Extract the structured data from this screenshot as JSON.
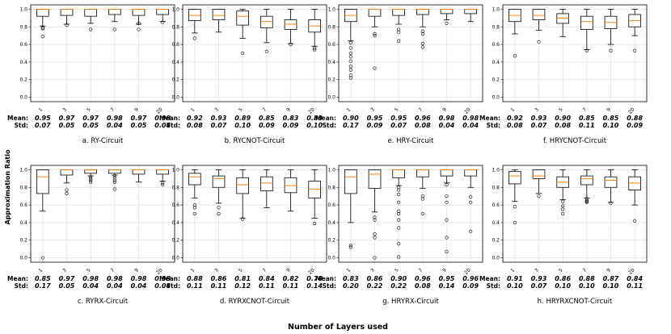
{
  "figure": {
    "y_axis_label": "Approximation Ratio",
    "x_axis_label": "Number of Layers used",
    "mean_label": "Mean:",
    "std_label": "Std:"
  },
  "colors": {
    "median": "#ff7f0e",
    "box": "#000000",
    "grid": "#dddddd"
  },
  "chart_data": [
    {
      "type": "box",
      "caption": "a. RY-Circuit",
      "row": 0,
      "col": 0,
      "categories": [
        "1",
        "3",
        "5",
        "7",
        "9",
        "20"
      ],
      "ylim": [
        0,
        1
      ],
      "yticks": [
        "0.0",
        "0.2",
        "0.4",
        "0.6",
        "0.8",
        "1.0"
      ],
      "means": [
        "0.95",
        "0.97",
        "0.97",
        "0.98",
        "0.97",
        "0.98"
      ],
      "stds": [
        "0.07",
        "0.05",
        "0.05",
        "0.04",
        "0.05",
        "0.04"
      ],
      "boxes": [
        {
          "q1": 0.92,
          "med": 1.0,
          "q3": 1.0,
          "lo": 0.81,
          "hi": 1.0,
          "out": [
            0.79,
            0.78,
            0.69
          ]
        },
        {
          "q1": 0.93,
          "med": 1.0,
          "q3": 1.0,
          "lo": 0.83,
          "hi": 1.0,
          "out": [
            0.82
          ]
        },
        {
          "q1": 0.92,
          "med": 1.0,
          "q3": 1.0,
          "lo": 0.84,
          "hi": 1.0,
          "out": [
            0.77
          ]
        },
        {
          "q1": 0.94,
          "med": 1.0,
          "q3": 1.0,
          "lo": 0.86,
          "hi": 1.0,
          "out": [
            0.77
          ]
        },
        {
          "q1": 0.93,
          "med": 1.0,
          "q3": 1.0,
          "lo": 0.83,
          "hi": 1.0,
          "out": [
            0.84,
            0.77
          ]
        },
        {
          "q1": 0.94,
          "med": 1.0,
          "q3": 1.0,
          "lo": 0.86,
          "hi": 1.0,
          "out": [
            0.85
          ]
        }
      ]
    },
    {
      "type": "box",
      "caption": "b. RYCNOT-Circuit",
      "row": 0,
      "col": 1,
      "categories": [
        "1",
        "3",
        "5",
        "7",
        "9",
        "20"
      ],
      "ylim": [
        0,
        1
      ],
      "yticks": [
        "0.0",
        "0.2",
        "0.4",
        "0.6",
        "0.8",
        "1.0"
      ],
      "means": [
        "0.92",
        "0.93",
        "0.89",
        "0.85",
        "0.83",
        "0.83"
      ],
      "stds": [
        "0.08",
        "0.07",
        "0.10",
        "0.09",
        "0.09",
        "0.10"
      ],
      "boxes": [
        {
          "q1": 0.87,
          "med": 0.93,
          "q3": 1.0,
          "lo": 0.73,
          "hi": 1.0,
          "out": [
            0.67
          ]
        },
        {
          "q1": 0.88,
          "med": 0.93,
          "q3": 1.0,
          "lo": 0.74,
          "hi": 1.0,
          "out": []
        },
        {
          "q1": 0.82,
          "med": 0.92,
          "q3": 0.98,
          "lo": 0.67,
          "hi": 1.0,
          "out": [
            0.5
          ]
        },
        {
          "q1": 0.79,
          "med": 0.86,
          "q3": 0.92,
          "lo": 0.62,
          "hi": 1.0,
          "out": [
            0.52
          ]
        },
        {
          "q1": 0.77,
          "med": 0.83,
          "q3": 0.88,
          "lo": 0.61,
          "hi": 1.0,
          "out": [
            0.6
          ]
        },
        {
          "q1": 0.74,
          "med": 0.81,
          "q3": 0.88,
          "lo": 0.58,
          "hi": 1.0,
          "out": [
            0.56,
            0.54
          ]
        }
      ]
    },
    {
      "type": "box",
      "caption": "e. HRY-Circuit",
      "row": 0,
      "col": 2,
      "categories": [
        "1",
        "3",
        "5",
        "7",
        "9",
        "20"
      ],
      "ylim": [
        0,
        1
      ],
      "yticks": [
        "0.0",
        "0.2",
        "0.4",
        "0.6",
        "0.8",
        "1.0"
      ],
      "means": [
        "0.90",
        "0.95",
        "0.95",
        "0.96",
        "0.98",
        "0.98"
      ],
      "stds": [
        "0.17",
        "0.09",
        "0.07",
        "0.08",
        "0.04",
        "0.04"
      ],
      "boxes": [
        {
          "q1": 0.86,
          "med": 0.93,
          "q3": 1.0,
          "lo": 0.64,
          "hi": 1.0,
          "out": [
            0.62,
            0.56,
            0.5,
            0.46,
            0.41,
            0.35,
            0.31,
            0.25,
            0.22
          ]
        },
        {
          "q1": 0.92,
          "med": 1.0,
          "q3": 1.0,
          "lo": 0.8,
          "hi": 1.0,
          "out": [
            0.72,
            0.7,
            0.33
          ]
        },
        {
          "q1": 0.93,
          "med": 1.0,
          "q3": 1.0,
          "lo": 0.83,
          "hi": 1.0,
          "out": [
            0.77,
            0.74,
            0.64
          ]
        },
        {
          "q1": 0.94,
          "med": 1.0,
          "q3": 1.0,
          "lo": 0.8,
          "hi": 1.0,
          "out": [
            0.75,
            0.72,
            0.61,
            0.57
          ]
        },
        {
          "q1": 0.95,
          "med": 1.0,
          "q3": 1.0,
          "lo": 0.88,
          "hi": 1.0,
          "out": [
            0.84
          ]
        },
        {
          "q1": 0.95,
          "med": 1.0,
          "q3": 1.0,
          "lo": 0.86,
          "hi": 1.0,
          "out": []
        }
      ]
    },
    {
      "type": "box",
      "caption": "f. HRYCNOT-Circuit",
      "row": 0,
      "col": 3,
      "categories": [
        "1",
        "3",
        "5",
        "7",
        "9",
        "20"
      ],
      "ylim": [
        0,
        1
      ],
      "yticks": [
        "0.0",
        "0.2",
        "0.4",
        "0.6",
        "0.8",
        "1.0"
      ],
      "means": [
        "0.92",
        "0.93",
        "0.90",
        "0.85",
        "0.85",
        "0.88"
      ],
      "stds": [
        "0.08",
        "0.07",
        "0.08",
        "0.11",
        "0.10",
        "0.09"
      ],
      "boxes": [
        {
          "q1": 0.86,
          "med": 0.93,
          "q3": 1.0,
          "lo": 0.72,
          "hi": 1.0,
          "out": [
            0.47
          ]
        },
        {
          "q1": 0.88,
          "med": 0.93,
          "q3": 1.0,
          "lo": 0.76,
          "hi": 1.0,
          "out": [
            0.63
          ]
        },
        {
          "q1": 0.84,
          "med": 0.9,
          "q3": 0.95,
          "lo": 0.69,
          "hi": 1.0,
          "out": []
        },
        {
          "q1": 0.77,
          "med": 0.86,
          "q3": 0.92,
          "lo": 0.54,
          "hi": 1.0,
          "out": [
            0.53
          ]
        },
        {
          "q1": 0.78,
          "med": 0.85,
          "q3": 0.92,
          "lo": 0.6,
          "hi": 1.0,
          "out": [
            0.53
          ]
        },
        {
          "q1": 0.8,
          "med": 0.87,
          "q3": 0.94,
          "lo": 0.7,
          "hi": 1.0,
          "out": [
            0.53
          ]
        }
      ]
    },
    {
      "type": "box",
      "caption": "c. RYRX-Circuit",
      "row": 1,
      "col": 0,
      "categories": [
        "1",
        "3",
        "5",
        "7",
        "9",
        "20"
      ],
      "ylim": [
        0,
        1
      ],
      "yticks": [
        "0.0",
        "0.2",
        "0.4",
        "0.6",
        "0.8",
        "1.0"
      ],
      "means": [
        "0.85",
        "0.97",
        "0.98",
        "0.98",
        "0.98",
        "0.98"
      ],
      "stds": [
        "0.17",
        "0.05",
        "0.04",
        "0.04",
        "0.04",
        "0.04"
      ],
      "boxes": [
        {
          "q1": 0.73,
          "med": 0.92,
          "q3": 1.0,
          "lo": 0.53,
          "hi": 1.0,
          "out": [
            0.0
          ]
        },
        {
          "q1": 0.94,
          "med": 1.0,
          "q3": 1.0,
          "lo": 0.85,
          "hi": 1.0,
          "out": [
            0.77,
            0.73
          ]
        },
        {
          "q1": 0.96,
          "med": 1.0,
          "q3": 1.0,
          "lo": 0.93,
          "hi": 1.0,
          "out": [
            0.92,
            0.9,
            0.88,
            0.86
          ]
        },
        {
          "q1": 0.96,
          "med": 1.0,
          "q3": 1.0,
          "lo": 0.94,
          "hi": 1.0,
          "out": [
            0.93,
            0.91,
            0.88,
            0.86,
            0.78
          ]
        },
        {
          "q1": 0.95,
          "med": 1.0,
          "q3": 1.0,
          "lo": 0.86,
          "hi": 1.0,
          "out": []
        },
        {
          "q1": 0.95,
          "med": 1.0,
          "q3": 1.0,
          "lo": 0.87,
          "hi": 1.0,
          "out": [
            0.85,
            0.83
          ]
        }
      ]
    },
    {
      "type": "box",
      "caption": "d. RYRXCNOT-Circuit",
      "row": 1,
      "col": 1,
      "categories": [
        "1",
        "3",
        "5",
        "7",
        "9",
        "20"
      ],
      "ylim": [
        0,
        1
      ],
      "yticks": [
        "0.0",
        "0.2",
        "0.4",
        "0.6",
        "0.8",
        "1.0"
      ],
      "means": [
        "0.88",
        "0.86",
        "0.81",
        "0.84",
        "0.82",
        "0.78"
      ],
      "stds": [
        "0.11",
        "0.11",
        "0.12",
        "0.11",
        "0.11",
        "0.14"
      ],
      "boxes": [
        {
          "q1": 0.83,
          "med": 0.92,
          "q3": 0.96,
          "lo": 0.68,
          "hi": 1.0,
          "out": [
            0.6,
            0.57,
            0.5
          ]
        },
        {
          "q1": 0.8,
          "med": 0.9,
          "q3": 0.93,
          "lo": 0.62,
          "hi": 1.0,
          "out": [
            0.57,
            0.5
          ]
        },
        {
          "q1": 0.73,
          "med": 0.83,
          "q3": 0.91,
          "lo": 0.45,
          "hi": 1.0,
          "out": [
            0.44
          ]
        },
        {
          "q1": 0.76,
          "med": 0.85,
          "q3": 0.92,
          "lo": 0.57,
          "hi": 1.0,
          "out": []
        },
        {
          "q1": 0.74,
          "med": 0.82,
          "q3": 0.91,
          "lo": 0.53,
          "hi": 1.0,
          "out": []
        },
        {
          "q1": 0.68,
          "med": 0.78,
          "q3": 0.87,
          "lo": 0.45,
          "hi": 1.0,
          "out": [
            0.39
          ]
        }
      ]
    },
    {
      "type": "box",
      "caption": "g. HRYRX-Circuit",
      "row": 1,
      "col": 2,
      "categories": [
        "1",
        "3",
        "5",
        "7",
        "9",
        "20"
      ],
      "ylim": [
        0,
        1
      ],
      "yticks": [
        "0.0",
        "0.2",
        "0.4",
        "0.6",
        "0.8",
        "1.0"
      ],
      "means": [
        "0.83",
        "0.86",
        "0.90",
        "0.96",
        "0.95",
        "0.96"
      ],
      "stds": [
        "0.20",
        "0.22",
        "0.22",
        "0.08",
        "0.14",
        "0.09"
      ],
      "boxes": [
        {
          "q1": 0.73,
          "med": 0.92,
          "q3": 1.0,
          "lo": 0.4,
          "hi": 1.0,
          "out": [
            0.14,
            0.12
          ]
        },
        {
          "q1": 0.79,
          "med": 0.95,
          "q3": 1.0,
          "lo": 0.52,
          "hi": 1.0,
          "out": [
            0.46,
            0.43,
            0.27,
            0.23,
            0.0
          ]
        },
        {
          "q1": 0.91,
          "med": 1.0,
          "q3": 1.0,
          "lo": 0.82,
          "hi": 1.0,
          "out": [
            0.8,
            0.77,
            0.72,
            0.63,
            0.53,
            0.5,
            0.43,
            0.34,
            0.16,
            0.01
          ]
        },
        {
          "q1": 0.92,
          "med": 1.0,
          "q3": 1.0,
          "lo": 0.79,
          "hi": 1.0,
          "out": [
            0.7,
            0.67,
            0.5
          ]
        },
        {
          "q1": 0.93,
          "med": 1.0,
          "q3": 1.0,
          "lo": 0.85,
          "hi": 1.0,
          "out": [
            0.83,
            0.7,
            0.63,
            0.43,
            0.23,
            0.07
          ]
        },
        {
          "q1": 0.93,
          "med": 1.0,
          "q3": 1.0,
          "lo": 0.8,
          "hi": 1.0,
          "out": [
            0.69,
            0.63,
            0.3
          ]
        }
      ]
    },
    {
      "type": "box",
      "caption": "h. HRYRXCNOT-Circuit",
      "row": 1,
      "col": 3,
      "categories": [
        "1",
        "3",
        "5",
        "7",
        "9",
        "20"
      ],
      "ylim": [
        0,
        1
      ],
      "yticks": [
        "0.0",
        "0.2",
        "0.4",
        "0.6",
        "0.8",
        "1.0"
      ],
      "means": [
        "0.91",
        "0.93",
        "0.86",
        "0.88",
        "0.87",
        "0.84"
      ],
      "stds": [
        "0.10",
        "0.07",
        "0.10",
        "0.10",
        "0.10",
        "0.11"
      ],
      "boxes": [
        {
          "q1": 0.84,
          "med": 0.93,
          "q3": 0.98,
          "lo": 0.64,
          "hi": 1.0,
          "out": [
            0.58,
            0.4
          ]
        },
        {
          "q1": 0.9,
          "med": 0.93,
          "q3": 1.0,
          "lo": 0.73,
          "hi": 1.0,
          "out": [
            0.7
          ]
        },
        {
          "q1": 0.8,
          "med": 0.86,
          "q3": 0.92,
          "lo": 0.66,
          "hi": 1.0,
          "out": [
            0.64,
            0.59,
            0.55,
            0.5
          ]
        },
        {
          "q1": 0.83,
          "med": 0.9,
          "q3": 0.93,
          "lo": 0.68,
          "hi": 1.0,
          "out": [
            0.67,
            0.65,
            0.64,
            0.63
          ]
        },
        {
          "q1": 0.8,
          "med": 0.88,
          "q3": 0.92,
          "lo": 0.63,
          "hi": 1.0,
          "out": [
            0.62
          ]
        },
        {
          "q1": 0.77,
          "med": 0.85,
          "q3": 0.92,
          "lo": 0.6,
          "hi": 1.0,
          "out": [
            0.42
          ]
        }
      ]
    }
  ]
}
